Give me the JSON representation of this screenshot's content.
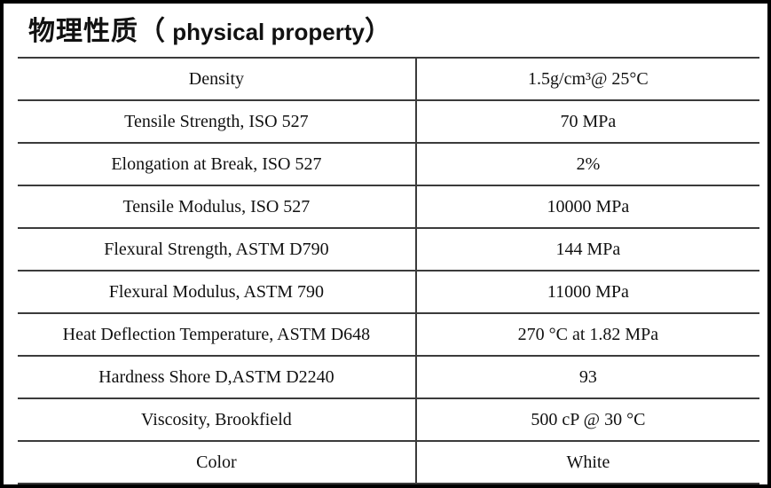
{
  "title": {
    "zh": "物理性质（",
    "en": " physical property",
    "close": "）"
  },
  "table": {
    "rows": [
      {
        "property": "Density",
        "value": "1.5g/cm³@ 25°C"
      },
      {
        "property": "Tensile Strength, ISO 527",
        "value": "70 MPa"
      },
      {
        "property": "Elongation at Break, ISO 527",
        "value": "2%"
      },
      {
        "property": "Tensile Modulus, ISO 527",
        "value": "10000 MPa"
      },
      {
        "property": "Flexural Strength, ASTM D790",
        "value": "144 MPa"
      },
      {
        "property": "Flexural Modulus, ASTM 790",
        "value": "11000 MPa"
      },
      {
        "property": "Heat Deflection Temperature, ASTM D648",
        "value": "270 °C at 1.82 MPa"
      },
      {
        "property": "Hardness Shore D,ASTM D2240",
        "value": "93"
      },
      {
        "property": "Viscosity, Brookfield",
        "value": "500 cP @ 30 °C"
      },
      {
        "property": "Color",
        "value": "White"
      }
    ]
  },
  "colors": {
    "page_border": "#000000",
    "table_line": "#3b3b3b",
    "text": "#111111",
    "background": "#ffffff"
  }
}
